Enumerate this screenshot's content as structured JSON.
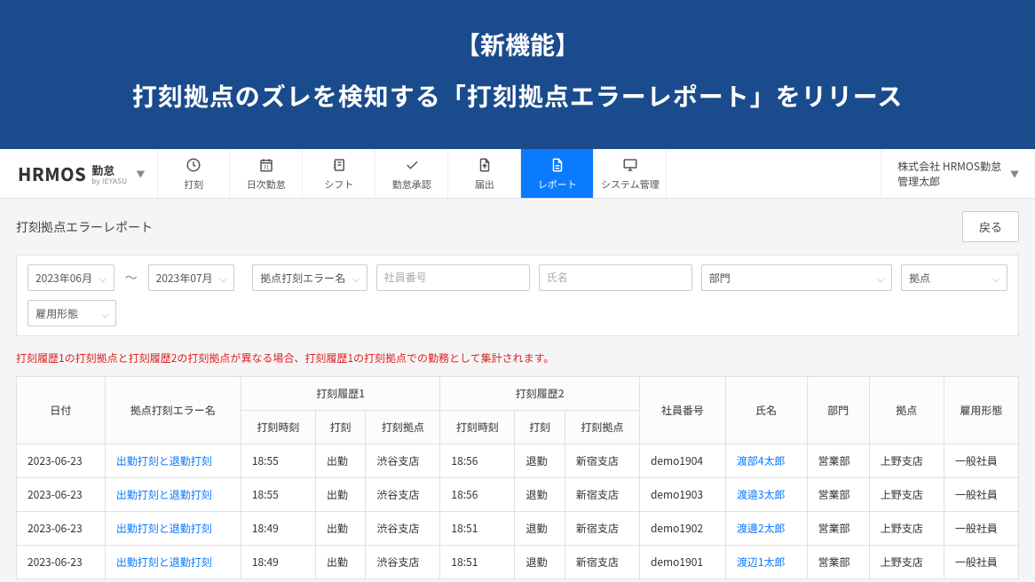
{
  "hero": {
    "tag": "【新機能】",
    "title": "打刻拠点のズレを検知する「打刻拠点エラーレポート」をリリース"
  },
  "brand": {
    "main": "HRMOS",
    "sub_top": "勤怠",
    "sub_bot": "by IEYASU"
  },
  "nav": [
    {
      "key": "clock",
      "label": "打刻",
      "icon": "clock"
    },
    {
      "key": "daily",
      "label": "日次勤怠",
      "icon": "calendar"
    },
    {
      "key": "shift",
      "label": "シフト",
      "icon": "notebook"
    },
    {
      "key": "approve",
      "label": "勤怠承認",
      "icon": "check"
    },
    {
      "key": "submit",
      "label": "届出",
      "icon": "file-up"
    },
    {
      "key": "report",
      "label": "レポート",
      "icon": "file",
      "active": true
    },
    {
      "key": "system",
      "label": "システム管理",
      "icon": "monitor"
    }
  ],
  "user": {
    "company": "株式会社 HRMOS勤怠",
    "name": "管理太郎"
  },
  "page": {
    "title": "打刻拠点エラーレポート",
    "back": "戻る"
  },
  "filters": {
    "from": "2023年06月",
    "to": "2023年07月",
    "error_name": "拠点打刻エラー名",
    "emp_no_ph": "社員番号",
    "name_ph": "氏名",
    "dept": "部門",
    "base": "拠点",
    "emp_type": "雇用形態"
  },
  "warning": "打刻履歴1の打刻拠点と打刻履歴2の打刻拠点が異なる場合、打刻履歴1の打刻拠点での勤務として集計されます。",
  "table": {
    "headers": {
      "date": "日付",
      "error": "拠点打刻エラー名",
      "hist1": "打刻履歴1",
      "hist2": "打刻履歴2",
      "h_time": "打刻時刻",
      "h_type": "打刻",
      "h_base": "打刻拠点",
      "emp_no": "社員番号",
      "name": "氏名",
      "dept": "部門",
      "base": "拠点",
      "emp_type": "雇用形態"
    },
    "rows": [
      {
        "date": "2023-06-23",
        "error": "出勤打刻と退勤打刻",
        "t1": "18:55",
        "k1": "出勤",
        "b1": "渋谷支店",
        "t2": "18:56",
        "k2": "退勤",
        "b2": "新宿支店",
        "emp_no": "demo1904",
        "name": "渡部4太郎",
        "dept": "営業部",
        "base": "上野支店",
        "emp_type": "一般社員"
      },
      {
        "date": "2023-06-23",
        "error": "出勤打刻と退勤打刻",
        "t1": "18:55",
        "k1": "出勤",
        "b1": "渋谷支店",
        "t2": "18:56",
        "k2": "退勤",
        "b2": "新宿支店",
        "emp_no": "demo1903",
        "name": "渡邉3太郎",
        "dept": "営業部",
        "base": "上野支店",
        "emp_type": "一般社員"
      },
      {
        "date": "2023-06-23",
        "error": "出勤打刻と退勤打刻",
        "t1": "18:49",
        "k1": "出勤",
        "b1": "渋谷支店",
        "t2": "18:51",
        "k2": "退勤",
        "b2": "新宿支店",
        "emp_no": "demo1902",
        "name": "渡邊2太郎",
        "dept": "営業部",
        "base": "上野支店",
        "emp_type": "一般社員"
      },
      {
        "date": "2023-06-23",
        "error": "出勤打刻と退勤打刻",
        "t1": "18:49",
        "k1": "出勤",
        "b1": "渋谷支店",
        "t2": "18:51",
        "k2": "退勤",
        "b2": "新宿支店",
        "emp_no": "demo1901",
        "name": "渡辺1太郎",
        "dept": "営業部",
        "base": "上野支店",
        "emp_type": "一般社員"
      }
    ]
  }
}
